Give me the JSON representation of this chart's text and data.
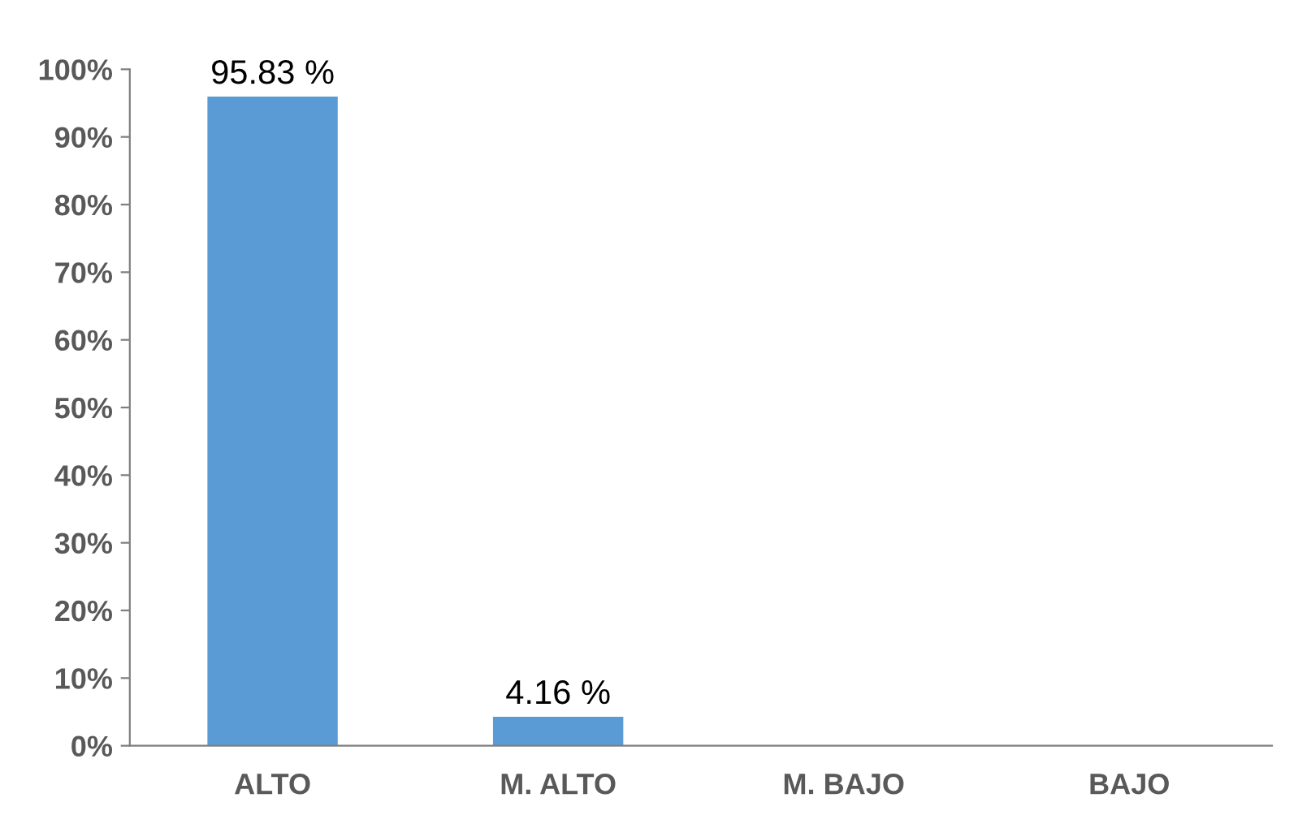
{
  "chart_data": {
    "type": "bar",
    "categories": [
      "ALTO",
      "M. ALTO",
      "M. BAJO",
      "BAJO"
    ],
    "values": [
      95.83,
      4.16,
      null,
      null
    ],
    "value_labels": [
      "95.83 %",
      "4.16 %",
      null,
      null
    ],
    "color": "#5b9bd5",
    "ylim": [
      0,
      100
    ],
    "yticks": [
      {
        "value": 0,
        "label": "0%"
      },
      {
        "value": 10,
        "label": "10%"
      },
      {
        "value": 20,
        "label": "20%"
      },
      {
        "value": 30,
        "label": "30%"
      },
      {
        "value": 40,
        "label": "40%"
      },
      {
        "value": 50,
        "label": "50%"
      },
      {
        "value": 60,
        "label": "60%"
      },
      {
        "value": 70,
        "label": "70%"
      },
      {
        "value": 80,
        "label": "80%"
      },
      {
        "value": 90,
        "label": "90%"
      },
      {
        "value": 100,
        "label": "100%"
      }
    ],
    "grid": false
  }
}
